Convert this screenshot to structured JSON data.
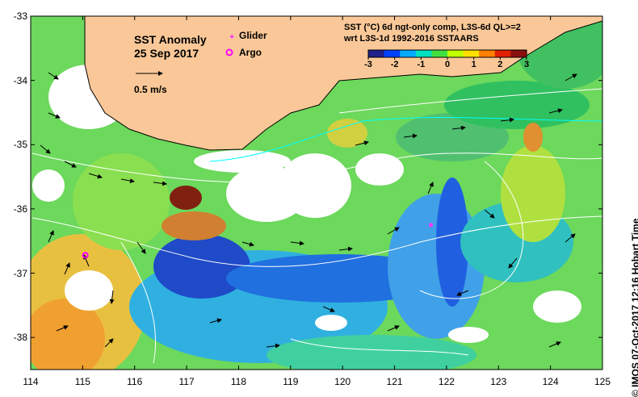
{
  "title_line1": "SST Anomaly",
  "title_line2": "25 Sep 2017",
  "velocity_label": "0.5 m/s",
  "legend": {
    "glider": "Glider",
    "argo": "Argo",
    "glider_color": "#ff33ff",
    "argo_color": "#ff00ff"
  },
  "description_line1": "SST (°C) 6d ngt-only comp, L3S-6d QL>=2",
  "description_line2": "wrt L3S-1d 1992-2016 SSTAARS",
  "colorbar": {
    "ticks": [
      "-3",
      "-2",
      "-1",
      "0",
      "1",
      "2",
      "3"
    ],
    "colors": [
      "#20208a",
      "#0040ff",
      "#00aaff",
      "#00e0c0",
      "#40e040",
      "#c0ff00",
      "#ffe000",
      "#ff8000",
      "#e02000",
      "#8a1010"
    ]
  },
  "credit": "IMOS 07-Oct-2017 12:16 Hobart Time",
  "copyright": "©",
  "axes": {
    "x_ticks": [
      "114",
      "115",
      "116",
      "117",
      "118",
      "119",
      "120",
      "121",
      "122",
      "123",
      "124",
      "125"
    ],
    "y_ticks": [
      "-33",
      "-34",
      "-35",
      "-36",
      "-37",
      "-38"
    ],
    "x_range": [
      114,
      125
    ],
    "y_range": [
      -38.5,
      -33
    ]
  },
  "colors": {
    "land": "#fac898",
    "missing": "#ffffff"
  },
  "markers": {
    "glider": [
      121.7,
      -36.25
    ],
    "argo": [
      115.05,
      -36.72
    ]
  }
}
